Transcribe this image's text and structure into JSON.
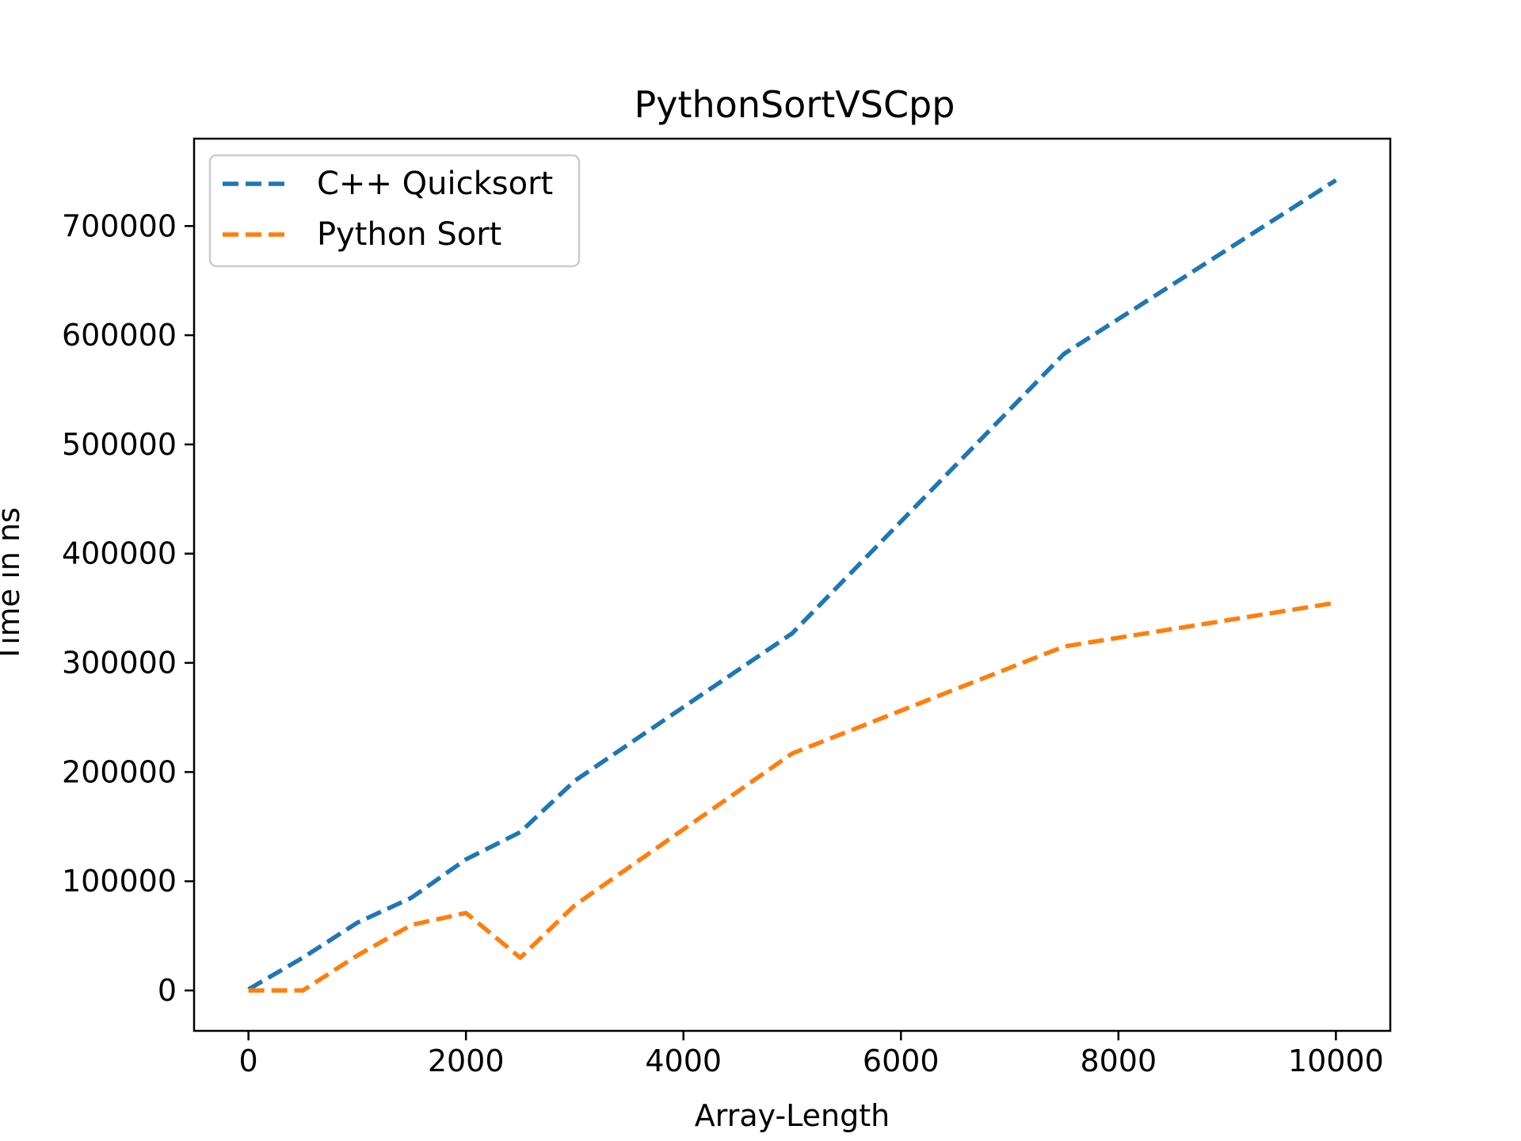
{
  "chart_data": {
    "type": "line",
    "title": "PythonSortVSCpp",
    "xlabel": "Array-Length",
    "ylabel": "Time in ns",
    "xlim": [
      -500,
      10500
    ],
    "ylim": [
      -37000,
      780000
    ],
    "x_ticks": [
      0,
      2000,
      4000,
      6000,
      8000,
      10000
    ],
    "x_tick_labels": [
      "0",
      "2000",
      "4000",
      "6000",
      "8000",
      "10000"
    ],
    "y_ticks": [
      0,
      100000,
      200000,
      300000,
      400000,
      500000,
      600000,
      700000
    ],
    "y_tick_labels": [
      "0",
      "100000",
      "200000",
      "300000",
      "400000",
      "500000",
      "600000",
      "700000"
    ],
    "grid": false,
    "legend_position": "upper-left",
    "series": [
      {
        "name": "C++ Quicksort",
        "color": "#1f77b4",
        "line_style": "dashed",
        "x": [
          0,
          500,
          1000,
          1500,
          2000,
          2500,
          3000,
          5000,
          7500,
          10000
        ],
        "y": [
          1000,
          30000,
          62000,
          85000,
          120000,
          145000,
          192000,
          327000,
          583000,
          742000
        ]
      },
      {
        "name": "Python Sort",
        "color": "#ff7f0e",
        "line_style": "dashed",
        "x": [
          0,
          500,
          1000,
          1500,
          2000,
          2500,
          3000,
          5000,
          7500,
          10000
        ],
        "y": [
          0,
          0,
          32000,
          60000,
          71000,
          30000,
          78000,
          217000,
          315000,
          355000
        ]
      }
    ]
  }
}
